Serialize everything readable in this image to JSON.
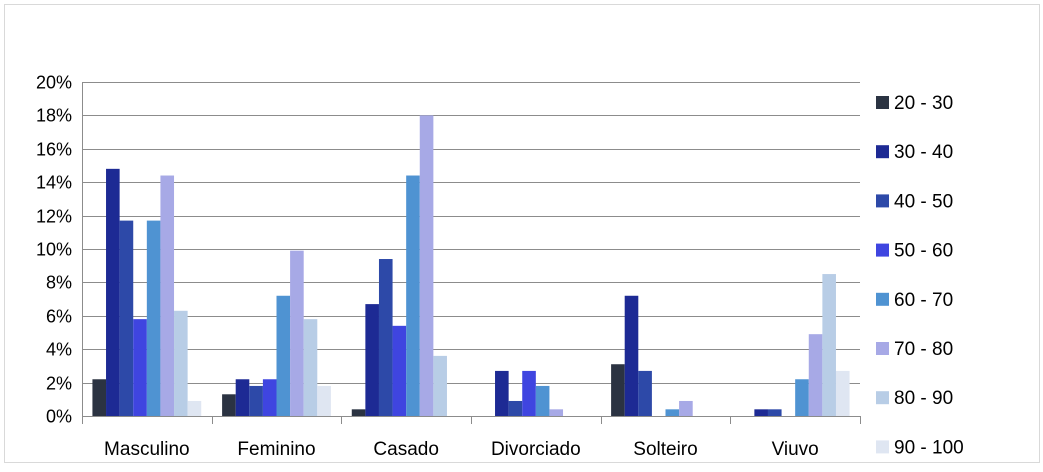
{
  "chart_data": {
    "type": "bar",
    "title": "",
    "xlabel": "",
    "ylabel": "",
    "ylim": [
      0,
      20
    ],
    "y_tick_step": 2,
    "y_unit": "%",
    "grid": true,
    "legend_position": "right",
    "categories": [
      "Masculino",
      "Feminino",
      "Casado",
      "Divorciado",
      "Solteiro",
      "Viuvo"
    ],
    "series": [
      {
        "name": "20 - 30",
        "color": "#2b3342",
        "values": [
          2.2,
          1.3,
          0.4,
          0,
          3.1,
          0
        ]
      },
      {
        "name": "30 - 40",
        "color": "#1d2a94",
        "values": [
          14.8,
          2.2,
          6.7,
          2.7,
          7.2,
          0.4
        ]
      },
      {
        "name": "40 - 50",
        "color": "#2d49a8",
        "values": [
          11.7,
          1.8,
          9.4,
          0.9,
          2.7,
          0.4
        ]
      },
      {
        "name": "50 - 60",
        "color": "#3f45e0",
        "values": [
          5.8,
          2.2,
          5.4,
          2.7,
          0,
          0
        ]
      },
      {
        "name": "60 - 70",
        "color": "#4f93d2",
        "values": [
          11.7,
          7.2,
          14.4,
          1.8,
          0.4,
          2.2
        ]
      },
      {
        "name": "70 - 80",
        "color": "#a7a9e6",
        "values": [
          14.4,
          9.9,
          18.0,
          0.4,
          0.9,
          4.9
        ]
      },
      {
        "name": "80 - 90",
        "color": "#b8cde6",
        "values": [
          6.3,
          5.8,
          3.6,
          0,
          0,
          8.5
        ]
      },
      {
        "name": "90 - 100",
        "color": "#dfe6f2",
        "values": [
          0.9,
          1.8,
          0,
          0,
          0,
          2.7
        ]
      }
    ]
  }
}
